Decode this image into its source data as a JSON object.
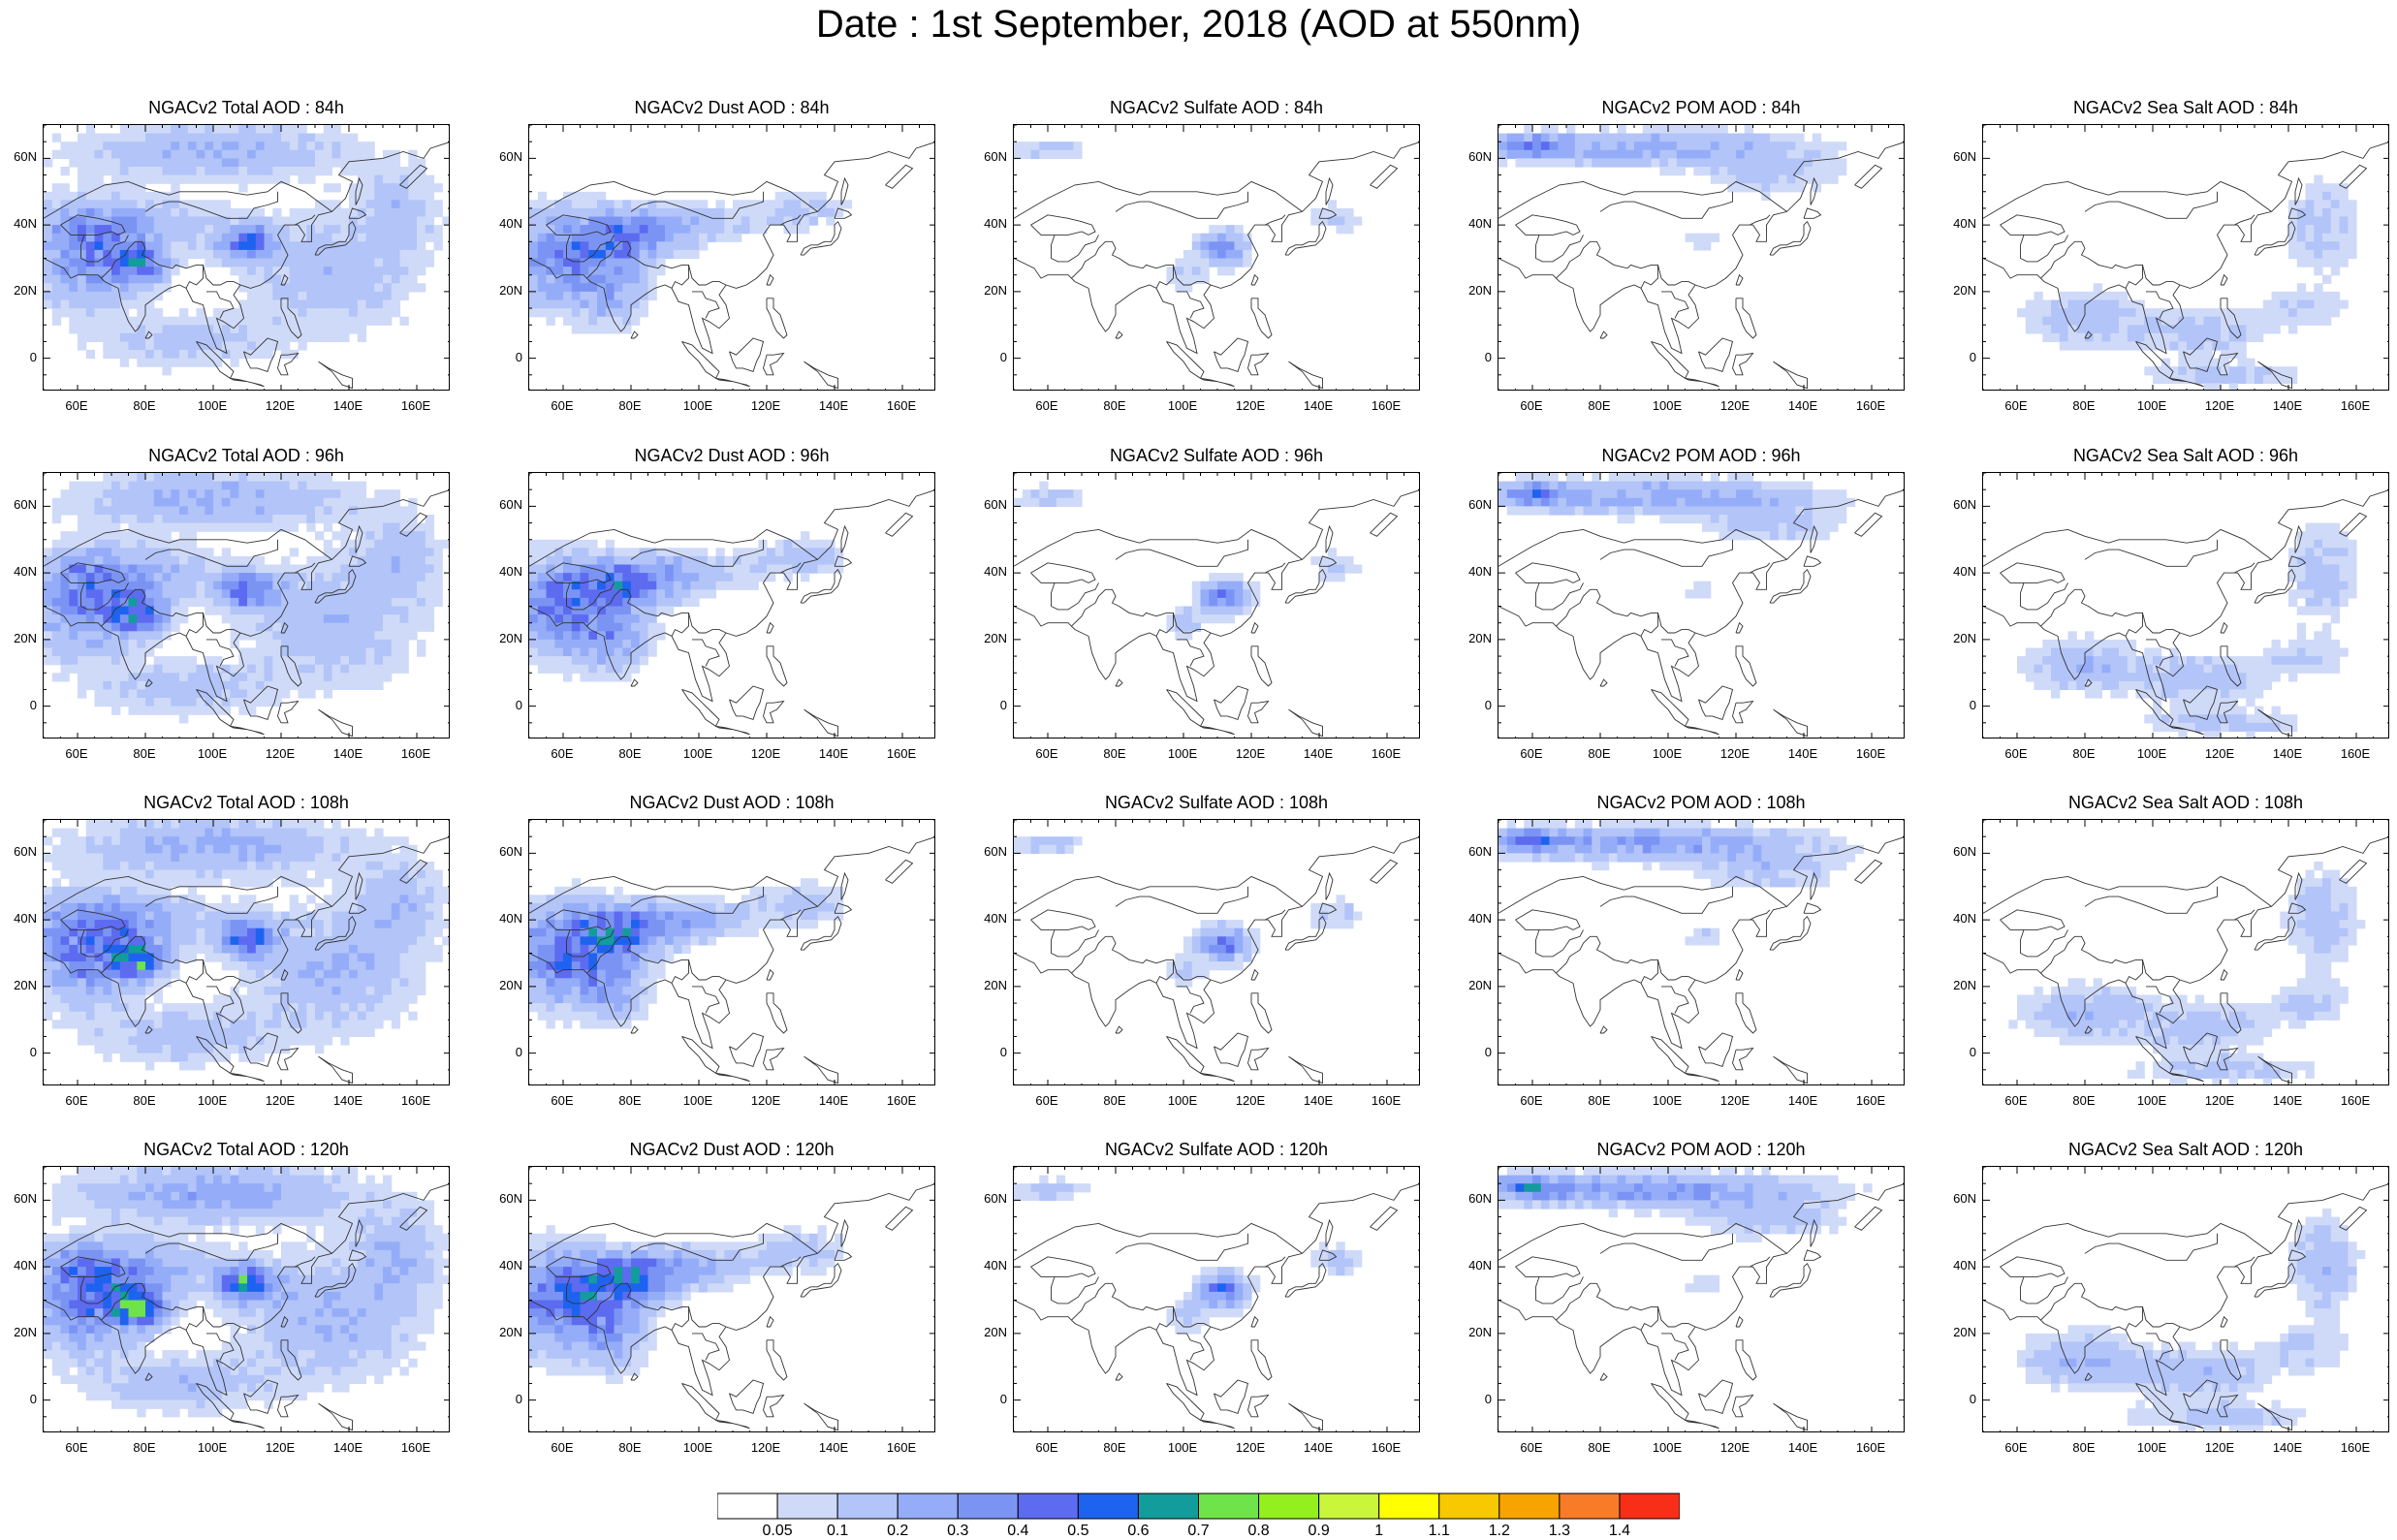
{
  "title": "Date : 1st September, 2018 (AOD at 550nm)",
  "colors": {
    "frame": "#000000",
    "coastline": "#333333",
    "aod_palette": [
      "#ffffff",
      "#cfdaf8",
      "#b2c4f8",
      "#95adf8",
      "#7b94f4",
      "#5c6bf0",
      "#1e63f0",
      "#139c9c",
      "#6fe34a",
      "#94ef1e",
      "#c9f53a",
      "#ffff00",
      "#f8c800",
      "#f8a400",
      "#f87c28",
      "#f82e18"
    ]
  },
  "colorbar": {
    "labels": [
      "0.05",
      "0.1",
      "0.2",
      "0.3",
      "0.4",
      "0.5",
      "0.6",
      "0.7",
      "0.8",
      "0.9",
      "1",
      "1.1",
      "1.2",
      "1.3",
      "1.4"
    ]
  },
  "axes": {
    "lat_ticks": [
      "60N",
      "40N",
      "20N",
      "0"
    ],
    "lon_ticks": [
      "60E",
      "80E",
      "100E",
      "120E",
      "140E",
      "160E"
    ]
  },
  "rows": [
    {
      "panels": [
        "NGACv2 Total AOD : 84h",
        "NGACv2 Dust AOD : 84h",
        "NGACv2 Sulfate AOD : 84h",
        "NGACv2 POM AOD : 84h",
        "NGACv2 Sea Salt AOD : 84h"
      ]
    },
    {
      "panels": [
        "NGACv2 Total AOD : 96h",
        "NGACv2 Dust AOD : 96h",
        "NGACv2 Sulfate AOD : 96h",
        "NGACv2 POM AOD : 96h",
        "NGACv2 Sea Salt AOD : 96h"
      ]
    },
    {
      "panels": [
        "NGACv2 Total AOD : 108h",
        "NGACv2 Dust AOD : 108h",
        "NGACv2 Sulfate AOD : 108h",
        "NGACv2 POM AOD : 108h",
        "NGACv2 Sea Salt AOD : 108h"
      ]
    },
    {
      "panels": [
        "NGACv2 Total AOD : 120h",
        "NGACv2 Dust AOD : 120h",
        "NGACv2 Sulfate AOD : 120h",
        "NGACv2 POM AOD : 120h",
        "NGACv2 Sea Salt  AOD : 120h"
      ]
    }
  ]
}
